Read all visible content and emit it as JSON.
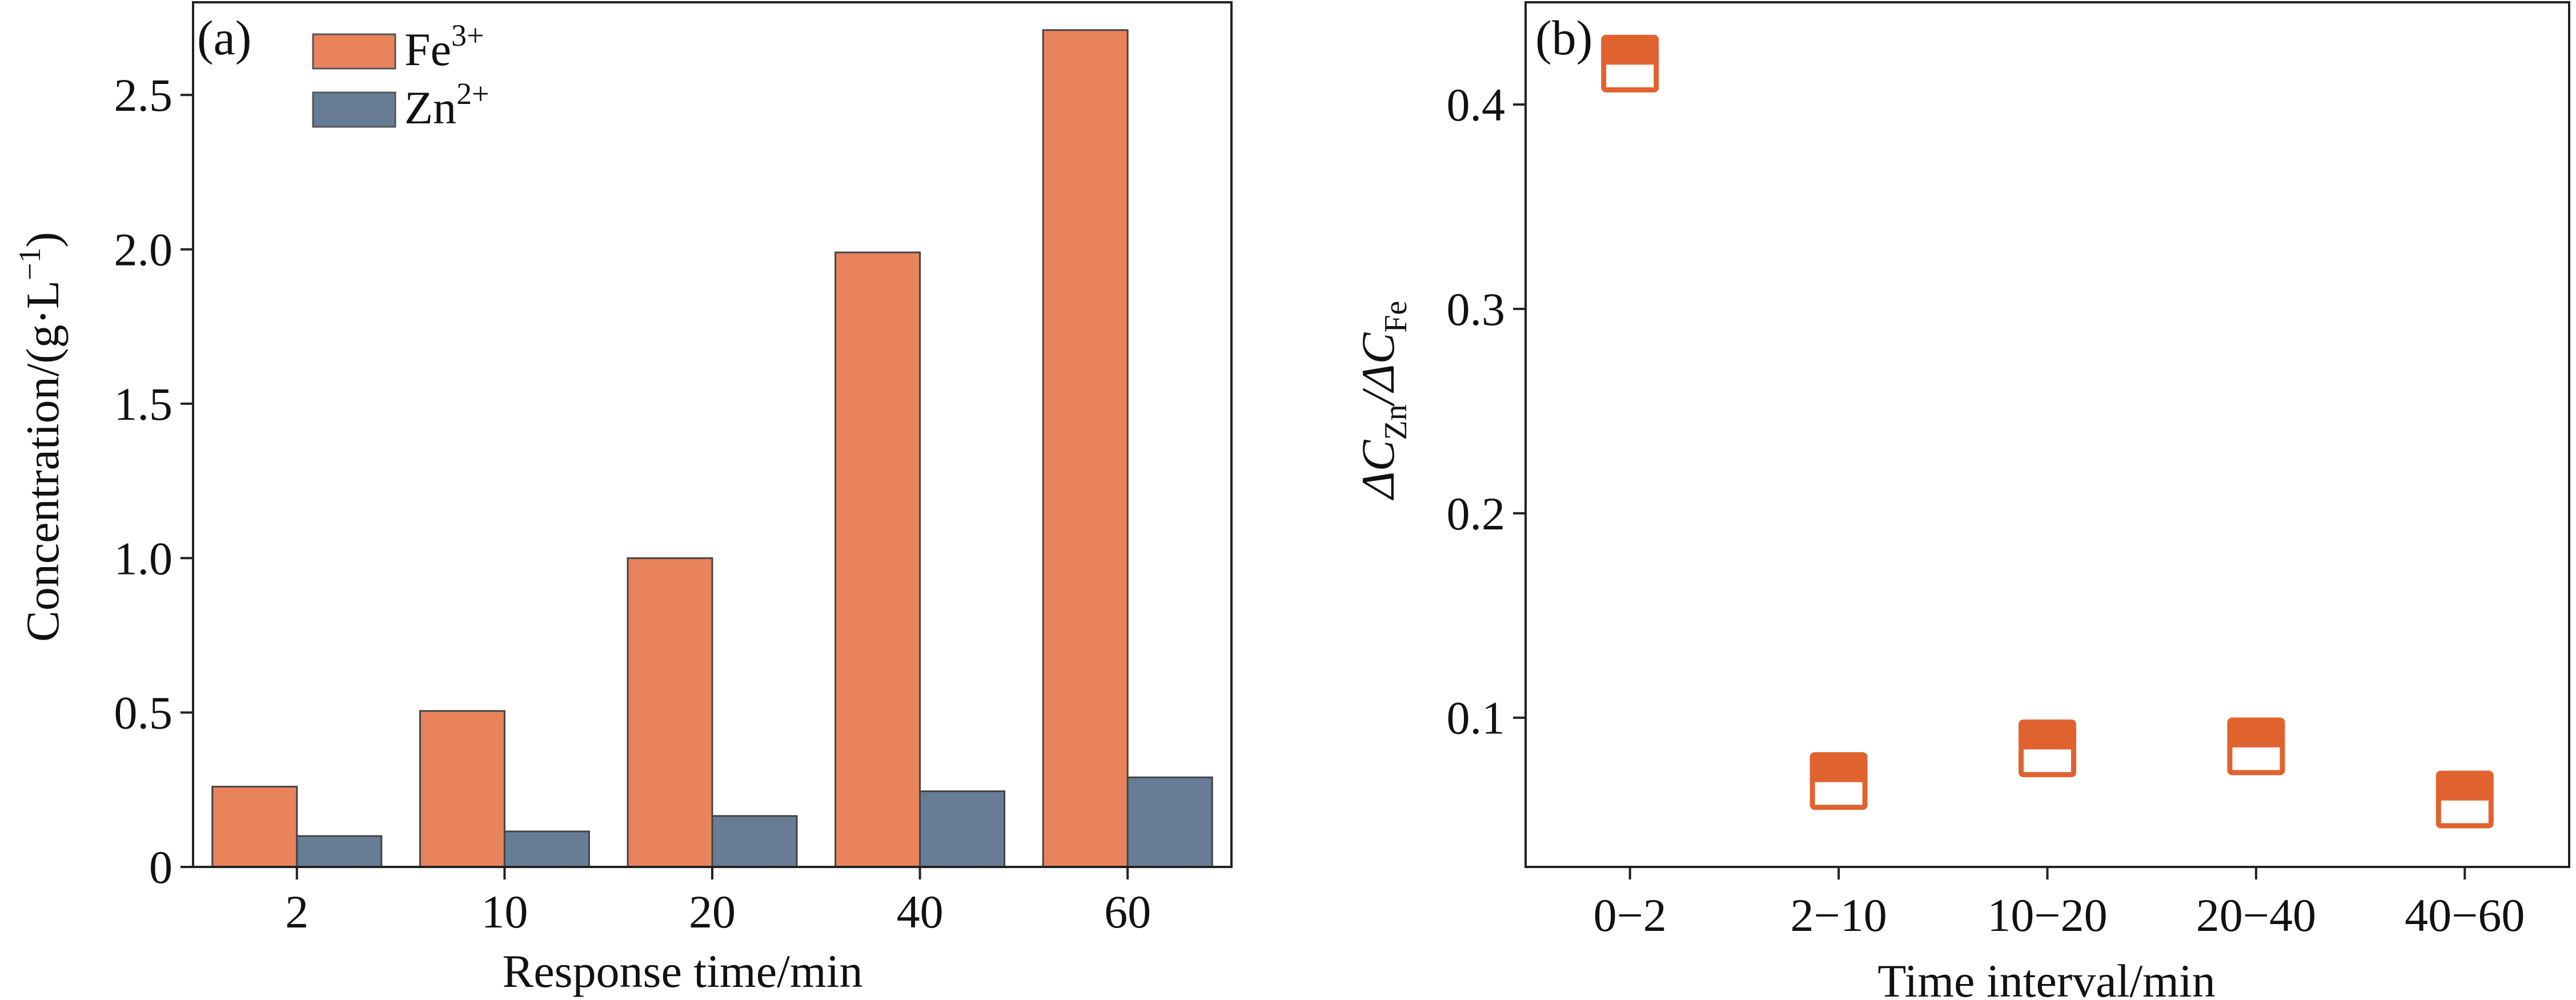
{
  "chart_data": [
    {
      "type": "bar",
      "panel_label": "(a)",
      "xlabel": "Response time/min",
      "ylabel": "Concentration/(g·L",
      "ylabel_unit_sup": "−1",
      "ylabel_close": ")",
      "categories": [
        "2",
        "10",
        "20",
        "40",
        "60"
      ],
      "ylim": [
        0,
        2.8
      ],
      "yticks": [
        "0",
        "0.5",
        "1.0",
        "1.5",
        "2.0",
        "2.5"
      ],
      "series": [
        {
          "name": "Fe",
          "sup": "3+",
          "color": "#E8835C",
          "values": [
            0.26,
            0.505,
            1.0,
            1.99,
            2.71
          ]
        },
        {
          "name": "Zn",
          "sup": "2+",
          "color": "#677D96",
          "values": [
            0.1,
            0.115,
            0.165,
            0.245,
            0.29
          ]
        }
      ],
      "legend_position": "top-left"
    },
    {
      "type": "scatter",
      "panel_label": "(b)",
      "xlabel": "Time interval/min",
      "ylabel_parts": [
        "ΔC",
        "Zn",
        "/ΔC",
        "Fe"
      ],
      "categories": [
        "0−2",
        "2−10",
        "10−20",
        "20−40",
        "40−60"
      ],
      "values": [
        0.42,
        0.069,
        0.085,
        0.086,
        0.06
      ],
      "ylim": [
        0.027,
        0.45
      ],
      "yticks": [
        "0.1",
        "0.2",
        "0.3",
        "0.4"
      ],
      "marker_color": "#E0632F",
      "marker": "half-filled-square"
    }
  ]
}
